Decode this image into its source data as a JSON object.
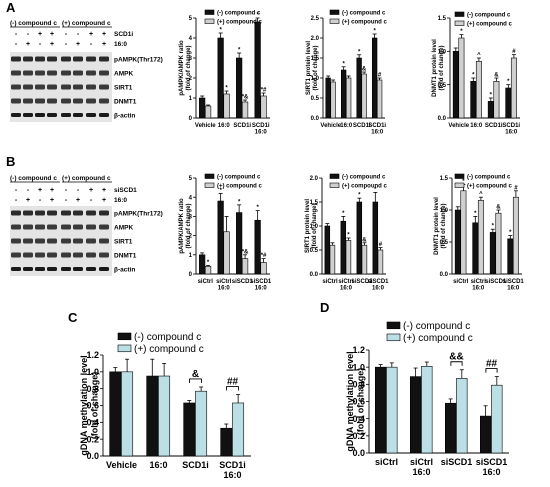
{
  "panel_labels": [
    "A",
    "B",
    "C",
    "D"
  ],
  "colors": {
    "black": "#111111",
    "gray": "#d0d0d0",
    "teal": "#bcdfe6"
  },
  "blot_A": {
    "header_left": "(-) compound c",
    "header_right": "(+) compound c",
    "row_labels": [
      "SCD1i",
      "16:0"
    ],
    "row_signs": [
      [
        "-",
        "-",
        "+",
        "+",
        "-",
        "-",
        "+",
        "+"
      ],
      [
        "-",
        "+",
        "-",
        "+",
        "-",
        "+",
        "-",
        "+"
      ]
    ],
    "bands": [
      "pAMPK(Thr172)",
      "AMPK",
      "SIRT1",
      "DNMT1",
      "β-actin"
    ]
  },
  "blot_B": {
    "header_left": "(-) compound c",
    "header_right": "(+) compound c",
    "row_labels": [
      "siSCD1",
      "16:0"
    ],
    "row_signs": [
      [
        "-",
        "-",
        "+",
        "+",
        "-",
        "-",
        "+",
        "+"
      ],
      [
        "-",
        "+",
        "-",
        "+",
        "-",
        "+",
        "-",
        "+"
      ]
    ],
    "bands": [
      "pAMPK(Thr172)",
      "AMPK",
      "SIRT1",
      "DNMT1",
      "β-actin"
    ]
  },
  "chart_data": [
    {
      "id": "A1",
      "type": "bar",
      "ylabel": "pAMPK/AMPK ratio\n(fold of change)",
      "ylim": [
        0,
        5
      ],
      "ticks": [
        0,
        1,
        2,
        3,
        4,
        5
      ],
      "categories": [
        "Vehicle",
        "16:0",
        "SCD1i",
        "SCD1i\n16:0"
      ],
      "series": [
        {
          "name": "(-) compound c",
          "values": [
            1.0,
            4.0,
            3.0,
            4.8
          ],
          "errors": [
            0.1,
            0.25,
            0.25,
            0.2
          ]
        },
        {
          "name": "(+) compound c",
          "values": [
            0.6,
            1.2,
            0.8,
            1.1
          ],
          "errors": [
            0.05,
            0.15,
            0.1,
            0.15
          ]
        }
      ],
      "annotations": [
        [
          "",
          ""
        ],
        [
          "*",
          "*"
        ],
        [
          "*",
          "*&"
        ],
        [
          "*",
          "*#"
        ]
      ]
    },
    {
      "id": "A2",
      "type": "bar",
      "ylabel": "SIRT1 protein level\n(fold of change)",
      "ylim": [
        0,
        2.5
      ],
      "ticks": [
        0.0,
        0.5,
        1.0,
        1.5,
        2.0,
        2.5
      ],
      "categories": [
        "Vehicle",
        "16:0",
        "SCD1i",
        "SCD1i\n16:0"
      ],
      "series": [
        {
          "name": "(-) compound c",
          "values": [
            1.0,
            1.2,
            1.5,
            2.0
          ],
          "errors": [
            0.05,
            0.08,
            0.08,
            0.1
          ]
        },
        {
          "name": "(+) compound c",
          "values": [
            0.9,
            1.0,
            1.1,
            0.95
          ],
          "errors": [
            0.05,
            0.05,
            0.05,
            0.05
          ]
        }
      ],
      "annotations": [
        [
          "",
          ""
        ],
        [
          "*",
          ""
        ],
        [
          "*",
          "&"
        ],
        [
          "*",
          "#"
        ]
      ]
    },
    {
      "id": "A3",
      "type": "bar",
      "ylabel": "DNMT1 protein level\n(fold of change)",
      "ylim": [
        0,
        1.5
      ],
      "ticks": [
        0.0,
        0.5,
        1.0,
        1.5
      ],
      "categories": [
        "Vehicle",
        "16:0",
        "SCD1i",
        "SCD1i\n16:0"
      ],
      "series": [
        {
          "name": "(-) compound c",
          "values": [
            1.0,
            0.55,
            0.25,
            0.45
          ],
          "errors": [
            0.05,
            0.05,
            0.05,
            0.05
          ]
        },
        {
          "name": "(+) compound c",
          "values": [
            1.2,
            0.85,
            0.55,
            0.9
          ],
          "errors": [
            0.05,
            0.05,
            0.05,
            0.05
          ]
        }
      ],
      "annotations": [
        [
          "",
          "*"
        ],
        [
          "*",
          "^"
        ],
        [
          "*",
          "&"
        ],
        [
          "*",
          "#"
        ]
      ]
    },
    {
      "id": "B1",
      "type": "bar",
      "ylabel": "pAMPK/AMPK ratio\n(fold of change)",
      "ylim": [
        0,
        5
      ],
      "ticks": [
        0,
        1,
        2,
        3,
        4,
        5
      ],
      "categories": [
        "siCtrl",
        "siCtrl\n16:0",
        "siSCD1",
        "siSCD1\n16:0"
      ],
      "series": [
        {
          "name": "(-) compound c",
          "values": [
            1.0,
            3.8,
            3.2,
            2.8
          ],
          "errors": [
            0.1,
            0.4,
            0.4,
            0.5
          ]
        },
        {
          "name": "(+) compound c",
          "values": [
            0.4,
            2.2,
            0.8,
            0.6
          ],
          "errors": [
            0.05,
            0.8,
            0.2,
            0.2
          ]
        }
      ],
      "annotations": [
        [
          "",
          "*"
        ],
        [
          "*",
          ""
        ],
        [
          "*",
          "*&"
        ],
        [
          "*",
          "*#"
        ]
      ]
    },
    {
      "id": "B2",
      "type": "bar",
      "ylabel": "SIRT1 protein level\n(fold of change)",
      "ylim": [
        0,
        2.0
      ],
      "ticks": [
        0.0,
        0.5,
        1.0,
        1.5,
        2.0
      ],
      "categories": [
        "siCtrl",
        "siCtrl\n16:0",
        "siSCD1",
        "siSCD1\n16:0"
      ],
      "series": [
        {
          "name": "(-) compound c",
          "values": [
            1.0,
            1.1,
            1.5,
            1.5
          ],
          "errors": [
            0.05,
            0.1,
            0.08,
            0.2
          ]
        },
        {
          "name": "(+) compound c",
          "values": [
            0.6,
            0.7,
            0.6,
            0.5
          ],
          "errors": [
            0.05,
            0.05,
            0.05,
            0.05
          ]
        }
      ],
      "annotations": [
        [
          "",
          ""
        ],
        [
          "*",
          "*"
        ],
        [
          "*",
          "&"
        ],
        [
          "*",
          "#"
        ]
      ]
    },
    {
      "id": "B3",
      "type": "bar",
      "ylabel": "DNMT1 protein level\n(fold of change)",
      "ylim": [
        0,
        1.5
      ],
      "ticks": [
        0.0,
        0.5,
        1.0,
        1.5
      ],
      "categories": [
        "siCtrl",
        "siCtrl\n16:0",
        "siSCD1",
        "siSCD1\n16:0"
      ],
      "series": [
        {
          "name": "(-) compound c",
          "values": [
            1.0,
            0.8,
            0.65,
            0.55
          ],
          "errors": [
            0.05,
            0.1,
            0.05,
            0.05
          ]
        },
        {
          "name": "(+) compound c",
          "values": [
            1.3,
            1.15,
            0.95,
            1.2
          ],
          "errors": [
            0.1,
            0.05,
            0.05,
            0.1
          ]
        }
      ],
      "annotations": [
        [
          "",
          "*"
        ],
        [
          "*",
          "^"
        ],
        [
          "*",
          "&"
        ],
        [
          "*",
          "#"
        ]
      ]
    },
    {
      "id": "C",
      "type": "bar",
      "ylabel": "gDNA methylation level\n(fold of change)",
      "ylim": [
        0,
        1.2
      ],
      "ticks": [
        0.0,
        0.2,
        0.4,
        0.6,
        0.8,
        1.0,
        1.2
      ],
      "categories": [
        "Vehicle",
        "16:0",
        "SCD1i",
        "SCD1i\n16:0"
      ],
      "series": [
        {
          "name": "(-) compound c",
          "values": [
            1.0,
            0.95,
            0.63,
            0.33
          ],
          "errors": [
            0.05,
            0.2,
            0.03,
            0.05
          ]
        },
        {
          "name": "(+) compound c",
          "values": [
            1.0,
            0.95,
            0.77,
            0.63
          ],
          "errors": [
            0.15,
            0.15,
            0.05,
            0.1
          ]
        }
      ],
      "brackets": [
        null,
        null,
        "&",
        "##"
      ]
    },
    {
      "id": "D",
      "type": "bar",
      "ylabel": "gDNA methylation level\n(fold of change)",
      "ylim": [
        0,
        1.2
      ],
      "ticks": [
        0.0,
        0.2,
        0.4,
        0.6,
        0.8,
        1.0,
        1.2
      ],
      "categories": [
        "siCtrl",
        "siCtrl\n16:0",
        "siSCD1",
        "siSCD1\n16:0"
      ],
      "series": [
        {
          "name": "(-) compound c",
          "values": [
            1.0,
            0.89,
            0.58,
            0.43
          ],
          "errors": [
            0.03,
            0.1,
            0.05,
            0.12
          ]
        },
        {
          "name": "(+) compound c",
          "values": [
            1.0,
            1.01,
            0.87,
            0.79
          ],
          "errors": [
            0.05,
            0.05,
            0.1,
            0.1
          ]
        }
      ],
      "brackets": [
        null,
        null,
        "&&",
        "##"
      ]
    }
  ]
}
